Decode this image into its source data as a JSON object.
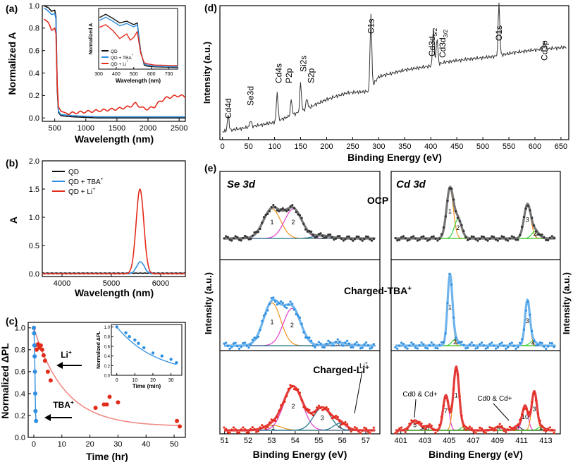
{
  "figure": {
    "panel_labels": {
      "a": "(a)",
      "b": "(b)",
      "c": "(c)",
      "d": "(d)",
      "e": "(e)"
    },
    "colors": {
      "qd": "#111111",
      "tba": "#2f8fe0",
      "li": "#e32b1a",
      "li_fit": "#f08a85",
      "raw": "#333333"
    }
  },
  "chart_data": [
    {
      "id": "a",
      "type": "line",
      "xlabel": "Wavelength (nm)",
      "ylabel": "Normalized A",
      "xlim": [
        300,
        2600
      ],
      "ylim": [
        0,
        1.0
      ],
      "xticks": [
        500,
        1000,
        1500,
        2000,
        2500
      ],
      "yticks": [
        0.0,
        0.2,
        0.4,
        0.6,
        0.8,
        1.0
      ],
      "series": [
        {
          "name": "QD",
          "color": "#111111",
          "x": [
            330,
            400,
            450,
            500,
            520,
            540,
            560,
            600,
            800,
            1200,
            1600,
            2000,
            2400,
            2600
          ],
          "y": [
            1.0,
            0.98,
            0.95,
            0.96,
            0.9,
            0.25,
            0.05,
            0.02,
            0.01,
            0.0,
            0.0,
            0.0,
            0.0,
            0.0
          ]
        },
        {
          "name": "QD + TBA+",
          "color": "#2f8fe0",
          "x": [
            330,
            400,
            450,
            500,
            520,
            540,
            560,
            600,
            800,
            1200,
            1600,
            2000,
            2400,
            2600
          ],
          "y": [
            0.98,
            0.95,
            0.92,
            0.93,
            0.88,
            0.3,
            0.06,
            0.03,
            0.02,
            0.01,
            0.01,
            0.01,
            0.01,
            0.01
          ]
        },
        {
          "name": "QD + Li+",
          "color": "#e32b1a",
          "x": [
            330,
            400,
            450,
            500,
            520,
            540,
            560,
            600,
            700,
            900,
            1100,
            1300,
            1500,
            1700,
            1800,
            1900,
            2000,
            2100,
            2200,
            2300,
            2400,
            2500,
            2600
          ],
          "y": [
            0.88,
            0.85,
            0.78,
            0.8,
            0.75,
            0.3,
            0.1,
            0.06,
            0.04,
            0.05,
            0.06,
            0.07,
            0.08,
            0.1,
            0.13,
            0.09,
            0.08,
            0.1,
            0.15,
            0.18,
            0.19,
            0.2,
            0.19
          ]
        }
      ],
      "inset": {
        "xlabel": "Wavelength (nm)",
        "ylabel": "Normalized A",
        "xlim": [
          300,
          750
        ],
        "xticks": [
          300,
          400,
          500,
          600,
          700
        ],
        "legend": [
          "QD",
          "QD + TBA+",
          "QD + Li+"
        ]
      }
    },
    {
      "id": "b",
      "type": "line",
      "xlabel": "Wavelength (nm)",
      "ylabel": "A",
      "xlim": [
        3600,
        6500
      ],
      "ylim": [
        -0.05,
        2.0
      ],
      "xticks": [
        4000,
        5000,
        6000
      ],
      "yticks": [
        0.0,
        0.5,
        1.0,
        1.5,
        2.0
      ],
      "legend": [
        "QD",
        "QD + TBA+",
        "QD + Li+"
      ],
      "series": [
        {
          "name": "QD",
          "color": "#111111",
          "peak_center": 5580,
          "peak_height": 0.0,
          "baseline": 0.01
        },
        {
          "name": "QD + TBA+",
          "color": "#2f8fe0",
          "peak_center": 5590,
          "peak_height": 0.21,
          "baseline": 0.0
        },
        {
          "name": "QD + Li+",
          "color": "#e32b1a",
          "peak_center": 5580,
          "peak_height": 1.5,
          "baseline": 0.0
        }
      ]
    },
    {
      "id": "c",
      "type": "scatter",
      "xlabel": "Time (hr)",
      "ylabel": "Normalized ΔPL",
      "xlim": [
        -2,
        54
      ],
      "ylim": [
        0,
        1.05
      ],
      "xticks": [
        0,
        10,
        20,
        30,
        40,
        50
      ],
      "yticks": [
        0.0,
        0.2,
        0.4,
        0.6,
        0.8,
        1.0
      ],
      "annotations": [
        "Li+",
        "TBA+"
      ],
      "series": [
        {
          "name": "Li+",
          "color": "#e32b1a",
          "x": [
            0,
            0.5,
            1,
            1.5,
            2,
            2.5,
            3,
            3.5,
            4,
            5,
            6,
            22,
            25,
            26,
            27,
            30,
            51,
            52
          ],
          "y": [
            1.0,
            0.84,
            0.8,
            0.85,
            0.82,
            0.84,
            0.8,
            0.75,
            0.7,
            0.6,
            0.52,
            0.27,
            0.3,
            0.3,
            0.37,
            0.32,
            0.15,
            0.1
          ]
        },
        {
          "name": "TBA+",
          "color": "#2f8fe0",
          "x": [
            0,
            0.1,
            0.2,
            0.3,
            0.4,
            0.5,
            0.6,
            0.8
          ],
          "y": [
            1.0,
            0.95,
            0.84,
            0.74,
            0.6,
            0.4,
            0.24,
            0.15
          ]
        }
      ],
      "inset": {
        "xlabel": "Time (min)",
        "ylabel": "Normalized ΔPL",
        "xlim": [
          -3,
          36
        ],
        "ylim": [
          0,
          1.05
        ],
        "xticks": [
          0,
          10,
          20,
          30
        ],
        "yticks": [
          0.0,
          0.2,
          0.4,
          0.6,
          0.8,
          1.0
        ],
        "x": [
          0,
          5,
          7,
          10,
          12,
          15,
          20,
          25,
          30,
          33
        ],
        "y": [
          1.0,
          0.88,
          0.8,
          0.73,
          0.66,
          0.57,
          0.46,
          0.4,
          0.33,
          0.26
        ]
      }
    },
    {
      "id": "d",
      "type": "line",
      "xlabel": "Binding Energy (eV)",
      "ylabel": "Intensity (a.u.)",
      "xlim": [
        -5,
        665
      ],
      "xticks": [
        0,
        50,
        100,
        150,
        200,
        250,
        300,
        350,
        400,
        450,
        500,
        550,
        600,
        650
      ],
      "peaks": [
        {
          "label": "Cd4d",
          "energy": 11
        },
        {
          "label": "Se3d",
          "energy": 54
        },
        {
          "label": "Cd4s",
          "energy": 108
        },
        {
          "label": "P2p",
          "energy": 132
        },
        {
          "label": "Si2s",
          "energy": 150
        },
        {
          "label": "S2p",
          "energy": 162
        },
        {
          "label": "C1s",
          "energy": 285
        },
        {
          "label": "Cd3d5/2",
          "energy": 405
        },
        {
          "label": "Cd3d3/2",
          "energy": 412
        },
        {
          "label": "O1s",
          "energy": 531
        },
        {
          "label": "Cd3p",
          "energy": 618
        }
      ]
    },
    {
      "id": "e",
      "type": "line",
      "xlabel": "Binding Energy (eV)",
      "ylabel": "Intensity (a.u.)",
      "subpanels": [
        {
          "title": "Se 3d",
          "xlim": [
            50.8,
            57.6
          ],
          "xticks": [
            51,
            52,
            53,
            54,
            55,
            56,
            57
          ]
        },
        {
          "title": "Cd 3d",
          "xlim": [
            400.2,
            414.2
          ],
          "xticks": [
            401,
            403,
            405,
            407,
            409,
            411,
            413
          ]
        }
      ],
      "rows": [
        {
          "label": "OCP",
          "fit_color": "#777777",
          "dot_color": "#333333",
          "se": [
            {
              "n": "1",
              "c": 52.95,
              "h": 0.52,
              "w": 0.55,
              "color": "#f0951d"
            },
            {
              "n": "2",
              "c": 53.9,
              "h": 0.52,
              "w": 0.55,
              "color": "#e23ecb"
            },
            {
              "n": "3",
              "c": 55.2,
              "h": 0.05,
              "w": 0.55,
              "color": "#1f6f8b"
            }
          ],
          "cd": [
            {
              "n": "1",
              "c": 404.95,
              "h": 0.88,
              "w": 0.42,
              "color": "#f0951d"
            },
            {
              "n": "2",
              "c": 405.65,
              "h": 0.34,
              "w": 0.45,
              "color": "#3ad13a"
            },
            {
              "n": "3",
              "c": 411.7,
              "h": 0.6,
              "w": 0.42,
              "color": "#f0951d"
            },
            {
              "n": "4",
              "c": 412.4,
              "h": 0.13,
              "w": 0.45,
              "color": "#3ad13a"
            }
          ]
        },
        {
          "label": "Charged-TBA+",
          "fit_color": "#6fb4ec",
          "dot_color": "#2f8fe0",
          "se": [
            {
              "n": "1",
              "c": 52.95,
              "h": 0.55,
              "w": 0.55,
              "color": "#f0951d"
            },
            {
              "n": "2",
              "c": 53.85,
              "h": 0.48,
              "w": 0.55,
              "color": "#e23ecb"
            },
            {
              "n": "3",
              "c": 55.9,
              "h": 0.04,
              "w": 0.55,
              "color": "#1f6f8b"
            }
          ],
          "cd": [
            {
              "n": "1",
              "c": 404.95,
              "h": 0.9,
              "w": 0.3,
              "color": "#f0951d"
            },
            {
              "n": "2",
              "c": 405.4,
              "h": 0.08,
              "w": 0.4,
              "color": "#3ad13a"
            },
            {
              "n": "3",
              "c": 411.7,
              "h": 0.58,
              "w": 0.3,
              "color": "#f0951d"
            },
            {
              "n": "4",
              "c": 412.2,
              "h": 0.06,
              "w": 0.4,
              "color": "#3ad13a"
            }
          ]
        },
        {
          "label": "Charged-Li+",
          "fit_color": "#e33d3d",
          "dot_color": "#e32b1a",
          "se": [
            {
              "n": "1",
              "c": 53.0,
              "h": 0.07,
              "w": 0.55,
              "color": "#f0951d"
            },
            {
              "n": "2",
              "c": 53.9,
              "h": 0.62,
              "w": 0.6,
              "color": "#e23ecb"
            },
            {
              "n": "3",
              "c": 55.2,
              "h": 0.32,
              "w": 0.55,
              "color": "#1f6f8b"
            },
            {
              "n": "4",
              "c": 56.0,
              "h": 0.1,
              "w": 0.4,
              "color": "#1f6f8b"
            }
          ],
          "cd": [
            {
              "n": "5",
              "c": 401.9,
              "h": 0.14,
              "w": 0.55,
              "color": "#8a1a2b"
            },
            {
              "n": "6",
              "c": 403.0,
              "h": 0.06,
              "w": 0.45,
              "color": "#3a2a6a"
            },
            {
              "n": "7",
              "c": 404.6,
              "h": 0.5,
              "w": 0.35,
              "color": "#e23ecb"
            },
            {
              "n": "1",
              "c": 405.5,
              "h": 0.9,
              "w": 0.35,
              "color": "#f0951d"
            },
            {
              "n": "2",
              "c": 406.2,
              "h": 0.05,
              "w": 0.4,
              "color": "#3ad13a"
            },
            {
              "n": "8",
              "c": 409.2,
              "h": 0.05,
              "w": 0.5,
              "color": "#8a1a2b"
            },
            {
              "n": "9",
              "c": 410.8,
              "h": 0.06,
              "w": 0.4,
              "color": "#3a2a6a"
            },
            {
              "n": "10",
              "c": 411.5,
              "h": 0.35,
              "w": 0.35,
              "color": "#e23ecb"
            },
            {
              "n": "3",
              "c": 412.3,
              "h": 0.55,
              "w": 0.32,
              "color": "#f0951d"
            },
            {
              "n": "4",
              "c": 412.9,
              "h": 0.05,
              "w": 0.4,
              "color": "#3ad13a"
            }
          ],
          "annotations": {
            "li": "Li+",
            "cd_left": "Cd0 & Cd+",
            "cd_right": "Cd0 & Cd+"
          }
        }
      ]
    }
  ]
}
